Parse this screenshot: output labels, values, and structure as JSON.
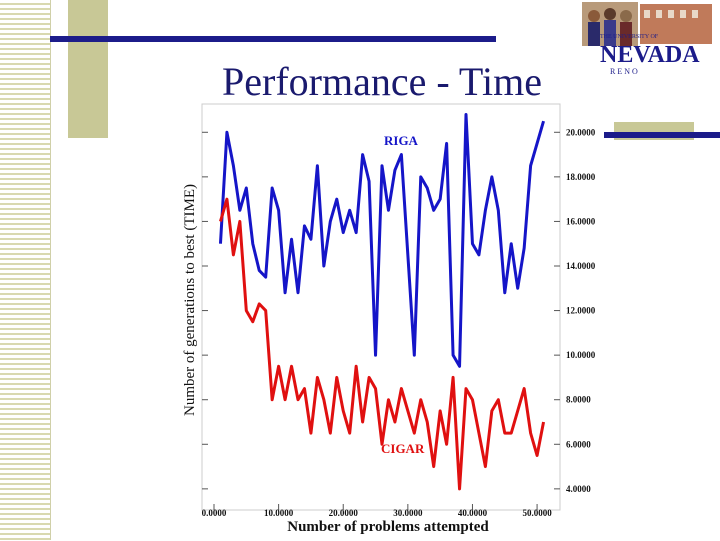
{
  "slide": {
    "title": "Performance - Time"
  },
  "logo": {
    "line1": "THE UNIVERSITY OF",
    "name": "NEVADA",
    "sub": "R E N O"
  },
  "colors": {
    "navy": "#1c1c8a",
    "olive": "#c8c896",
    "riga": "#1515c8",
    "cigar": "#e01010"
  },
  "chart_data": {
    "type": "line",
    "title": "",
    "xlabel": "Number of problems attempted",
    "ylabel": "Number of generations to best (TIME)",
    "xlim": [
      0,
      52
    ],
    "ylim": [
      3.5,
      21
    ],
    "x_ticks": [
      "0.0000",
      "10.0000",
      "20.0000",
      "30.0000",
      "40.0000",
      "50.0000"
    ],
    "y_ticks": [
      "4.0000",
      "6.0000",
      "8.0000",
      "10.0000",
      "12.0000",
      "14.0000",
      "16.0000",
      "18.0000",
      "20.0000"
    ],
    "x_tick_values": [
      0,
      10,
      20,
      30,
      40,
      50
    ],
    "y_tick_values": [
      4,
      6,
      8,
      10,
      12,
      14,
      16,
      18,
      20
    ],
    "series": [
      {
        "name": "RIGA",
        "color": "#1515c8",
        "x": [
          1,
          2,
          3,
          4,
          5,
          6,
          7,
          8,
          9,
          10,
          11,
          12,
          13,
          14,
          15,
          16,
          17,
          18,
          19,
          20,
          21,
          22,
          23,
          24,
          25,
          26,
          27,
          28,
          29,
          30,
          31,
          32,
          33,
          34,
          35,
          36,
          37,
          38,
          39,
          40,
          41,
          42,
          43,
          44,
          45,
          46,
          47,
          48,
          49,
          50,
          51
        ],
        "values": [
          15,
          20,
          18.5,
          16.5,
          17.5,
          15,
          13.8,
          13.5,
          17.5,
          16.5,
          12.8,
          15.2,
          12.8,
          15.8,
          15.2,
          18.5,
          14,
          16,
          17,
          15.5,
          16.5,
          15.5,
          19,
          17.8,
          10,
          18.5,
          16.5,
          18.3,
          19,
          14.5,
          10,
          18,
          17.5,
          16.5,
          17,
          19.5,
          10,
          9.5,
          20.8,
          15,
          14.5,
          16.5,
          18,
          16.5,
          12.8,
          15,
          13,
          14.8,
          18.5,
          19.5,
          20.5
        ]
      },
      {
        "name": "CIGAR",
        "color": "#e01010",
        "x": [
          1,
          2,
          3,
          4,
          5,
          6,
          7,
          8,
          9,
          10,
          11,
          12,
          13,
          14,
          15,
          16,
          17,
          18,
          19,
          20,
          21,
          22,
          23,
          24,
          25,
          26,
          27,
          28,
          29,
          30,
          31,
          32,
          33,
          34,
          35,
          36,
          37,
          38,
          39,
          40,
          41,
          42,
          43,
          44,
          45,
          46,
          47,
          48,
          49,
          50,
          51
        ],
        "values": [
          16,
          17,
          14.5,
          16,
          12,
          11.5,
          12.3,
          12,
          8,
          9.5,
          8,
          9.5,
          8,
          8.5,
          6.5,
          9,
          8,
          6.5,
          9,
          7.5,
          6.5,
          9.5,
          7,
          9,
          8.5,
          6,
          8,
          7,
          8.5,
          7.5,
          6.5,
          8,
          7,
          5,
          7.5,
          6,
          9,
          4,
          8.5,
          8,
          6.5,
          5,
          7.5,
          8,
          6.5,
          6.5,
          7.5,
          8.5,
          6.5,
          5.5,
          7
        ]
      }
    ],
    "annotations": [
      "RIGA",
      "CIGAR"
    ],
    "grid": false
  }
}
